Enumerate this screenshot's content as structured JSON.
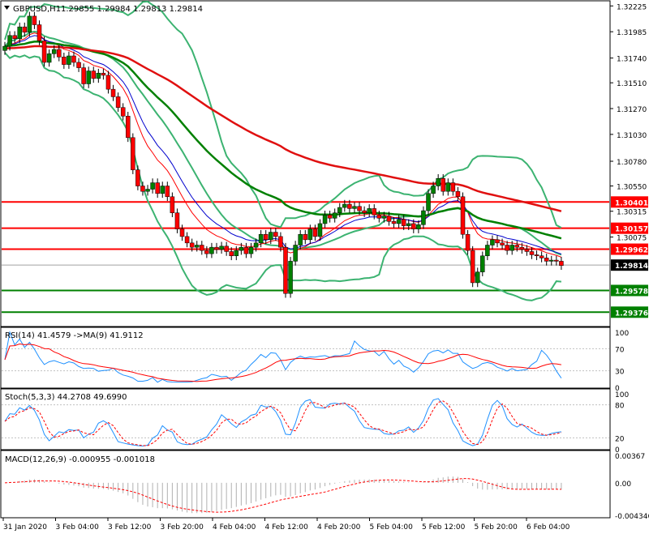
{
  "window": {
    "symbol_label": "GBPUSD,H1",
    "ohlc_label": "1.29855 1.29984 1.29813 1.29814"
  },
  "chart_data": [
    {
      "type": "candlestick",
      "symbol": "GBPUSD",
      "timeframe": "H1",
      "ohlc": {
        "open": 1.29855,
        "high": 1.29984,
        "low": 1.29813,
        "close": 1.29814
      },
      "ylim": [
        1.2925,
        1.3225
      ],
      "y_ticks": [
        1.32225,
        1.31985,
        1.3174,
        1.3151,
        1.3127,
        1.3103,
        1.3078,
        1.3055,
        1.30315,
        1.30075
      ],
      "x_tick_labels": [
        "31 Jan 2020",
        "3 Feb 04:00",
        "3 Feb 12:00",
        "3 Feb 20:00",
        "4 Feb 04:00",
        "4 Feb 12:00",
        "4 Feb 20:00",
        "5 Feb 04:00",
        "5 Feb 12:00",
        "5 Feb 20:00",
        "6 Feb 04:00"
      ],
      "price_tags": [
        {
          "value": "1.30401",
          "color": "#ff0000"
        },
        {
          "value": "1.30157",
          "color": "#ff0000"
        },
        {
          "value": "1.29962",
          "color": "#ff0000"
        },
        {
          "value": "1.29814",
          "color": "#000000"
        },
        {
          "value": "1.29578",
          "color": "#008000"
        },
        {
          "value": "1.29376",
          "color": "#008000"
        }
      ],
      "horizontal_levels": [
        {
          "value": 1.30401,
          "color": "#ff0000"
        },
        {
          "value": 1.30157,
          "color": "#ff0000"
        },
        {
          "value": 1.29962,
          "color": "#ff0000"
        },
        {
          "value": 1.29578,
          "color": "#008000"
        },
        {
          "value": 1.29376,
          "color": "#008000"
        }
      ],
      "current_price": 1.29814,
      "candles_close": [
        1.3185,
        1.3195,
        1.3192,
        1.3203,
        1.3198,
        1.3213,
        1.3205,
        1.319,
        1.317,
        1.3178,
        1.3182,
        1.3175,
        1.3168,
        1.3176,
        1.317,
        1.3165,
        1.315,
        1.3162,
        1.3155,
        1.316,
        1.3158,
        1.3145,
        1.3138,
        1.3128,
        1.312,
        1.31,
        1.307,
        1.3055,
        1.305,
        1.3052,
        1.3058,
        1.3048,
        1.3055,
        1.3045,
        1.303,
        1.3015,
        1.3008,
        1.3002,
        1.2998,
        1.3,
        1.2995,
        1.2992,
        1.2998,
        1.2996,
        1.2999,
        1.2994,
        1.299,
        1.2995,
        1.2998,
        1.2992,
        1.2998,
        1.3002,
        1.301,
        1.3005,
        1.3012,
        1.3008,
        1.2998,
        1.2955,
        1.2985,
        1.3,
        1.301,
        1.3005,
        1.3015,
        1.3008,
        1.302,
        1.3028,
        1.3025,
        1.303,
        1.3035,
        1.3038,
        1.3034,
        1.3036,
        1.3032,
        1.303,
        1.3034,
        1.3028,
        1.3025,
        1.3027,
        1.3022,
        1.302,
        1.3024,
        1.3018,
        1.302,
        1.3015,
        1.3019,
        1.3032,
        1.3048,
        1.3055,
        1.3062,
        1.305,
        1.3058,
        1.305,
        1.3045,
        1.301,
        1.2995,
        1.2965,
        1.2975,
        1.299,
        1.3,
        1.3005,
        1.3002,
        1.3,
        1.2995,
        1.3,
        1.2998,
        1.2996,
        1.2994,
        1.2991,
        1.299,
        1.2988,
        1.2985,
        1.2986,
        1.2985,
        1.2981
      ],
      "bands_rsi": {
        "label": "RSI(14) 41.4579  ->MA(9) 41.9112",
        "ylim": [
          0,
          100
        ],
        "ticks": [
          100,
          70,
          30,
          0
        ],
        "levels": [
          70,
          30
        ],
        "rsi": 41.4579,
        "rsi_ma": 41.9112
      },
      "stoch": {
        "label": "Stoch(5,3,3) 44.2708 49.6990",
        "ylim": [
          0,
          100
        ],
        "ticks": [
          100,
          80,
          20,
          0
        ],
        "levels": [
          80,
          20
        ],
        "k": 44.2708,
        "d": 49.699
      },
      "macd": {
        "label": "MACD(12,26,9) -0.000955 -0.001018",
        "ticks": [
          "0.00367",
          "0.00",
          "-0.004346"
        ],
        "ylim": [
          -0.004346,
          0.00367
        ],
        "macd": -0.000955,
        "signal": -0.001018
      }
    }
  ],
  "colors": {
    "bull": "#008000",
    "bear": "#ff0000",
    "bands": "#3cb371",
    "ma_fast_red": "#ff0000",
    "ma_blue": "#0000cd",
    "ma_green": "#008000",
    "ma_slow_red": "#e01010",
    "rsi_line": "#1e90ff",
    "signal": "#ff0000",
    "grid": "#c0c0c0"
  }
}
